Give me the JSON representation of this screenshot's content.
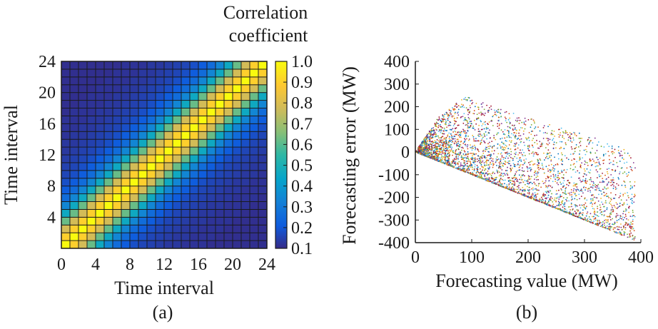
{
  "figure": {
    "panel_a_label": "(a)",
    "panel_b_label": "(b)",
    "colorbar_title_line1": "Correlation",
    "colorbar_title_line2": "coefficient"
  },
  "chart_data": [
    {
      "type": "heatmap",
      "xlabel": "Time interval",
      "ylabel": "Time interval",
      "x_ticks": [
        "0",
        "4",
        "8",
        "12",
        "16",
        "20",
        "24"
      ],
      "y_ticks": [
        "4",
        "8",
        "12",
        "16",
        "20",
        "24"
      ],
      "xlim": [
        0,
        24
      ],
      "ylim": [
        0,
        24
      ],
      "grid_size": 24,
      "colormap": "parula",
      "colorbar": {
        "ticks": [
          "0.1",
          "0.2",
          "0.3",
          "0.4",
          "0.5",
          "0.6",
          "0.7",
          "0.8",
          "0.9",
          "1.0"
        ],
        "range": [
          0.1,
          1.0
        ]
      },
      "correlation_by_lag": [
        1.0,
        0.9,
        0.78,
        0.62,
        0.46,
        0.34,
        0.26,
        0.21,
        0.18,
        0.16,
        0.15,
        0.14,
        0.13,
        0.13,
        0.12,
        0.12,
        0.12,
        0.11,
        0.11,
        0.11,
        0.11,
        0.11,
        0.11,
        0.11
      ],
      "pattern": "symmetric matrix, value depends on lag |i-j|"
    },
    {
      "type": "scatter",
      "xlabel": "Forecasting value (MW)",
      "ylabel": "Forecasting error (MW)",
      "x_ticks": [
        "0",
        "100",
        "200",
        "300",
        "400"
      ],
      "y_ticks": [
        "400",
        "300",
        "200",
        "100",
        "0",
        "-100",
        "-200",
        "-300",
        "-400"
      ],
      "xlim": [
        0,
        400
      ],
      "ylim": [
        -400,
        400
      ],
      "point_count": 3500,
      "lower_bound": "error = -value",
      "upper_envelope": [
        [
          0,
          0
        ],
        [
          40,
          150
        ],
        [
          90,
          250
        ],
        [
          140,
          200
        ],
        [
          200,
          150
        ],
        [
          300,
          80
        ],
        [
          370,
          20
        ],
        [
          390,
          -10
        ]
      ],
      "series_colors": [
        "#0072bd",
        "#d95319",
        "#edb120",
        "#7e2f8e",
        "#77ac30",
        "#4dbeee",
        "#a2142f"
      ]
    }
  ]
}
